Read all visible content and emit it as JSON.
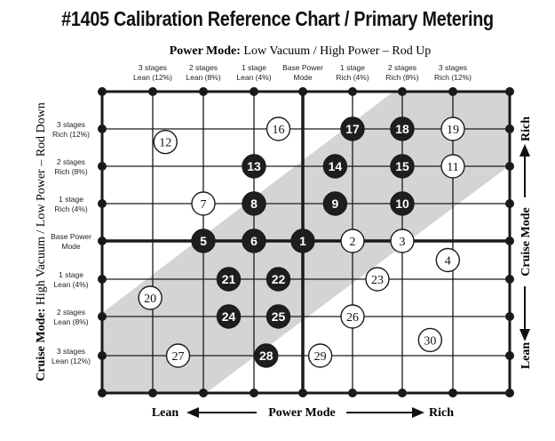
{
  "title": "#1405 Calibration Reference Chart / Primary Metering",
  "top_axis": {
    "bold": "Power Mode:",
    "text": " Low Vacuum / High Power – Rod Up"
  },
  "left_axis": {
    "bold": "Cruise Mode:",
    "text": " High Vacuum / Low Power – Rod Down"
  },
  "columns": [
    [
      "3 stages",
      "Lean (12%)"
    ],
    [
      "2 stages",
      "Lean (8%)"
    ],
    [
      "1 stage",
      "Lean (4%)"
    ],
    [
      "Base Power",
      "Mode"
    ],
    [
      "1 stage",
      "Rich (4%)"
    ],
    [
      "2 stages",
      "Rich (8%)"
    ],
    [
      "3 stages",
      "Rich (12%)"
    ]
  ],
  "rows": [
    [
      "3 stages",
      "Rich (12%)"
    ],
    [
      "2 stages",
      "Rich (8%)"
    ],
    [
      "1 stage",
      "Rich (4%)"
    ],
    [
      "Base Power",
      "Mode"
    ],
    [
      "1 stage",
      "Lean (4%)"
    ],
    [
      "2 stages",
      "Lean (8%)"
    ],
    [
      "3 stages",
      "Lean (12%)"
    ]
  ],
  "bottom_axis": {
    "left": "Lean",
    "center": "Power Mode",
    "right": "Rich"
  },
  "right_axis": {
    "top": "Rich",
    "center": "Cruise Mode",
    "bottom": "Lean"
  },
  "markers": [
    {
      "n": "1",
      "col": 3,
      "row": 3,
      "filled": true
    },
    {
      "n": "2",
      "col": 4,
      "row": 3,
      "filled": false
    },
    {
      "n": "3",
      "col": 5,
      "row": 3,
      "filled": false
    },
    {
      "n": "4",
      "col": 5.9,
      "row": 3.5,
      "filled": false
    },
    {
      "n": "5",
      "col": 1,
      "row": 3,
      "filled": true
    },
    {
      "n": "6",
      "col": 2,
      "row": 3,
      "filled": true
    },
    {
      "n": "7",
      "col": 1,
      "row": 2,
      "filled": false
    },
    {
      "n": "8",
      "col": 2,
      "row": 2,
      "filled": true
    },
    {
      "n": "9",
      "col": 3.65,
      "row": 2,
      "filled": true
    },
    {
      "n": "10",
      "col": 5,
      "row": 2,
      "filled": true
    },
    {
      "n": "11",
      "col": 6,
      "row": 1,
      "filled": false
    },
    {
      "n": "12",
      "col": 0.25,
      "row": 0.35,
      "filled": false
    },
    {
      "n": "13",
      "col": 2,
      "row": 1,
      "filled": true
    },
    {
      "n": "14",
      "col": 3.65,
      "row": 1,
      "filled": true
    },
    {
      "n": "15",
      "col": 5,
      "row": 1,
      "filled": true
    },
    {
      "n": "16",
      "col": 2.5,
      "row": 0,
      "filled": false
    },
    {
      "n": "17",
      "col": 4,
      "row": 0,
      "filled": true
    },
    {
      "n": "18",
      "col": 5,
      "row": 0,
      "filled": true
    },
    {
      "n": "19",
      "col": 6,
      "row": 0,
      "filled": false
    },
    {
      "n": "20",
      "col": -0.05,
      "row": 4.5,
      "filled": false
    },
    {
      "n": "21",
      "col": 1.5,
      "row": 4,
      "filled": true
    },
    {
      "n": "22",
      "col": 2.5,
      "row": 4,
      "filled": true
    },
    {
      "n": "23",
      "col": 4.5,
      "row": 4,
      "filled": false
    },
    {
      "n": "24",
      "col": 1.5,
      "row": 5,
      "filled": true
    },
    {
      "n": "25",
      "col": 2.5,
      "row": 5,
      "filled": true
    },
    {
      "n": "26",
      "col": 4,
      "row": 5,
      "filled": false
    },
    {
      "n": "27",
      "col": 0.5,
      "row": 6,
      "filled": false
    },
    {
      "n": "28",
      "col": 2.25,
      "row": 6,
      "filled": true
    },
    {
      "n": "29",
      "col": 3.35,
      "row": 6,
      "filled": false
    },
    {
      "n": "30",
      "col": 5.55,
      "row": 5.6,
      "filled": false
    }
  ],
  "colors": {
    "line": "#1a1a1a",
    "band": "#d4d4d4",
    "filled": "#1e1e1e",
    "open": "#ffffff"
  }
}
